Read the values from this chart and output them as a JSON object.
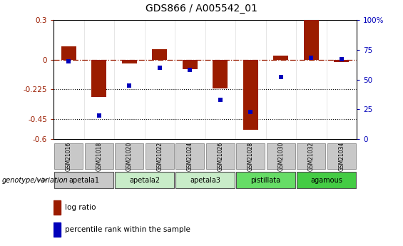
{
  "title": "GDS866 / A005542_01",
  "samples": [
    "GSM21016",
    "GSM21018",
    "GSM21020",
    "GSM21022",
    "GSM21024",
    "GSM21026",
    "GSM21028",
    "GSM21030",
    "GSM21032",
    "GSM21034"
  ],
  "log_ratio": [
    0.1,
    -0.28,
    -0.03,
    0.08,
    -0.07,
    -0.22,
    -0.53,
    0.03,
    0.3,
    -0.02
  ],
  "percentile_rank": [
    65,
    20,
    45,
    60,
    58,
    33,
    23,
    52,
    68,
    67
  ],
  "ylim_left": [
    -0.6,
    0.3
  ],
  "yticks_left": [
    0.3,
    0.0,
    -0.225,
    -0.45,
    -0.6
  ],
  "ytick_labels_left": [
    "0.3",
    "0",
    "-0.225",
    "-0.45",
    "-0.6"
  ],
  "ylim_right": [
    0,
    100
  ],
  "yticks_right": [
    100,
    75,
    50,
    25,
    0
  ],
  "ytick_labels_right": [
    "100%",
    "75",
    "50",
    "25",
    "0"
  ],
  "bar_color": "#9B1C00",
  "dot_color": "#0000BB",
  "groups": [
    {
      "label": "apetala1",
      "count": 2,
      "color": "#c8c8c8"
    },
    {
      "label": "apetala2",
      "count": 2,
      "color": "#c8ecc8"
    },
    {
      "label": "apetala3",
      "count": 2,
      "color": "#c8ecc8"
    },
    {
      "label": "pistillata",
      "count": 2,
      "color": "#66dd66"
    },
    {
      "label": "agamous",
      "count": 2,
      "color": "#44cc44"
    }
  ],
  "sample_box_color": "#c8c8c8",
  "genotype_label": "genotype/variation",
  "legend_bar_label": "log ratio",
  "legend_dot_label": "percentile rank within the sample",
  "title_fontsize": 10,
  "axis_fontsize": 7.5,
  "bar_width": 0.5
}
